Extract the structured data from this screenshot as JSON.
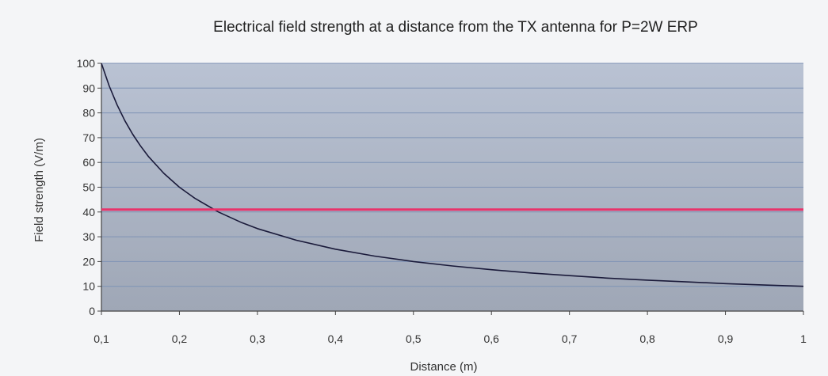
{
  "chart_data": {
    "type": "line",
    "title": "Electrical field strength at a distance from the TX antenna for P=2W ERP",
    "xlabel": "Distance (m)",
    "ylabel": "Field strength (V/m)",
    "xlim": [
      0.1,
      1
    ],
    "ylim": [
      0,
      100
    ],
    "x_ticks": [
      "0,1",
      "0,2",
      "0,3",
      "0,4",
      "0,5",
      "0,6",
      "0,7",
      "0,8",
      "0,9",
      "1"
    ],
    "y_ticks": [
      "0",
      "10",
      "20",
      "30",
      "40",
      "50",
      "60",
      "70",
      "80",
      "90",
      "100"
    ],
    "grid": true,
    "series": [
      {
        "color": "#1a1a3a",
        "x": [
          0.1,
          0.11,
          0.12,
          0.13,
          0.14,
          0.15,
          0.16,
          0.18,
          0.2,
          0.22,
          0.25,
          0.28,
          0.3,
          0.35,
          0.4,
          0.45,
          0.5,
          0.55,
          0.6,
          0.65,
          0.7,
          0.75,
          0.8,
          0.85,
          0.9,
          0.95,
          1.0
        ],
        "y": [
          100,
          90.9,
          83.3,
          76.9,
          71.4,
          66.7,
          62.5,
          55.6,
          50,
          45.5,
          40,
          35.7,
          33.3,
          28.6,
          25,
          22.2,
          20,
          18.2,
          16.7,
          15.4,
          14.3,
          13.3,
          12.5,
          11.8,
          11.1,
          10.5,
          10
        ]
      },
      {
        "color": "#e8336a",
        "x": [
          0.1,
          1.0
        ],
        "y": [
          41,
          41
        ]
      }
    ],
    "colors": {
      "plot_bg_top": "#b9c2d3",
      "plot_bg_bottom": "#9fa7b6",
      "gridline": "#7f93b5",
      "axis": "#444444"
    }
  }
}
